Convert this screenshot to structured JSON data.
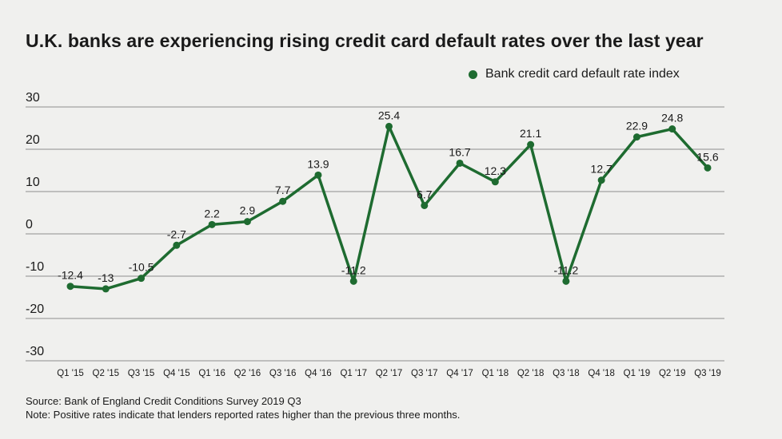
{
  "title": "U.K. banks are experiencing rising credit card default rates over the last year",
  "legend": {
    "label": "Bank credit card default rate index"
  },
  "colors": {
    "series": "#1e6b30",
    "grid": "#8e8e8e",
    "background": "#f0f0ee"
  },
  "footer": {
    "source": "Source: Bank of England Credit Conditions Survey 2019 Q3",
    "note": "Note: Positive rates indicate that lenders reported rates higher than the previous three months."
  },
  "chart_data": {
    "type": "line",
    "categories": [
      "Q1 '15",
      "Q2 '15",
      "Q3 '15",
      "Q4 '15",
      "Q1 '16",
      "Q2 '16",
      "Q3 '16",
      "Q4 '16",
      "Q1 '17",
      "Q2 '17",
      "Q3 '17",
      "Q4 '17",
      "Q1 '18",
      "Q2 '18",
      "Q3 '18",
      "Q4 '18",
      "Q1 '19",
      "Q2 '19",
      "Q3 '19"
    ],
    "series": [
      {
        "name": "Bank credit card default rate index",
        "values": [
          -12.4,
          -13,
          -10.5,
          -2.7,
          2.2,
          2.9,
          7.7,
          13.9,
          -11.2,
          25.4,
          6.7,
          16.7,
          12.3,
          21.1,
          -11.2,
          12.7,
          22.9,
          24.8,
          15.6
        ],
        "labels": [
          "-12.4",
          "-13",
          "-10.5",
          "-2.7",
          "2.2",
          "2.9",
          "7.7",
          "13.9",
          "-11.2",
          "25.4",
          "6.7",
          "16.7",
          "12.3",
          "21.1",
          "-11.2",
          "12.7",
          "22.9",
          "24.8",
          "15.6"
        ]
      }
    ],
    "y_ticks": [
      "30",
      "20",
      "10",
      "0",
      "-10",
      "-20",
      "-30"
    ],
    "ylim": [
      -30,
      30
    ],
    "grid": true,
    "legend_position": "top-right"
  }
}
